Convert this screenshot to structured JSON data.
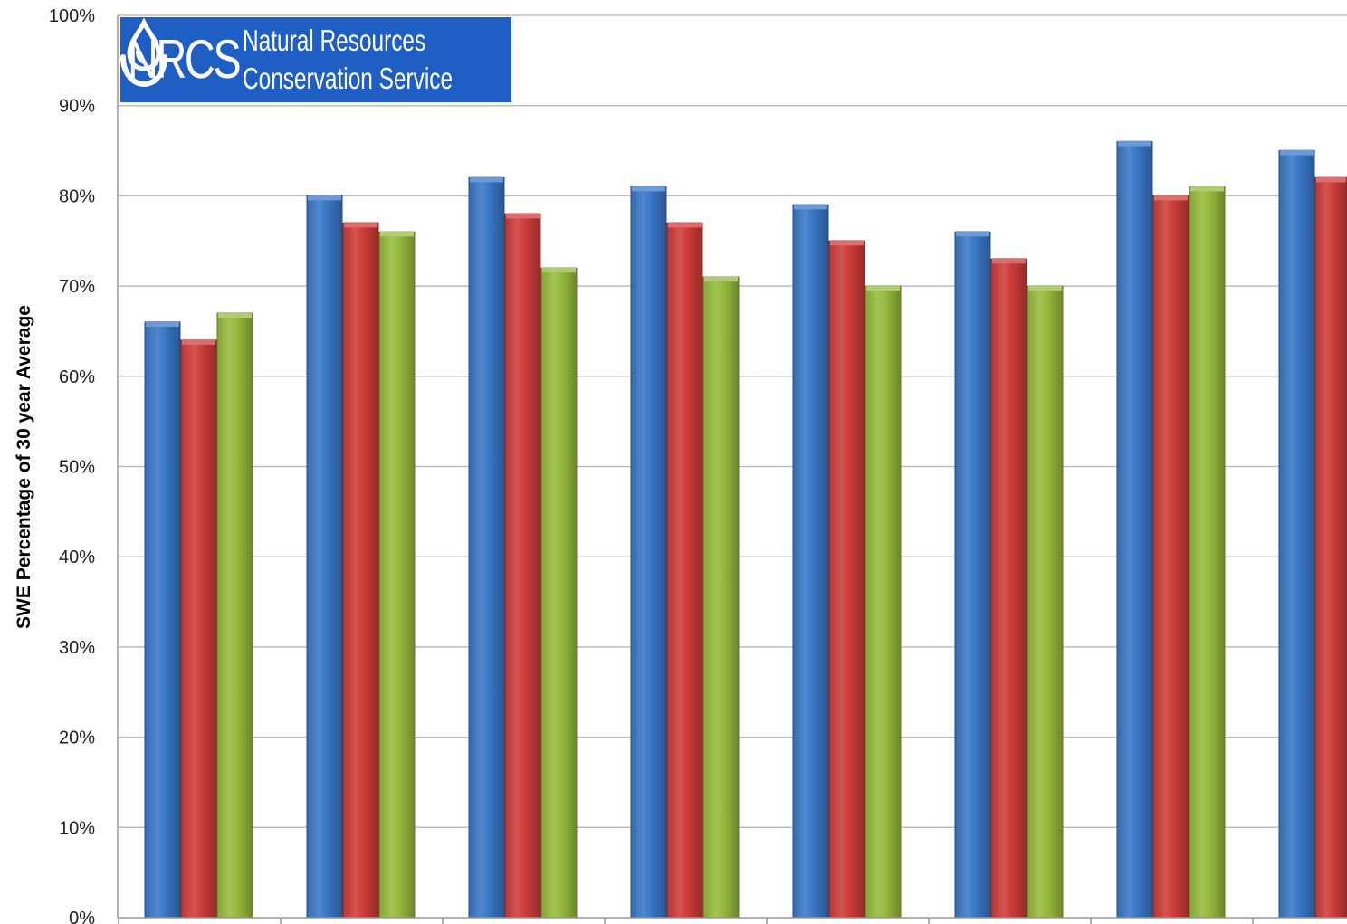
{
  "chart_data": {
    "type": "bar",
    "ylabel": "SWE Percentage of 30 year Average",
    "ylim": [
      0,
      100
    ],
    "y_tick_labels": [
      "0%",
      "10%",
      "20%",
      "30%",
      "40%",
      "50%",
      "60%",
      "70%",
      "80%",
      "90%",
      "100%"
    ],
    "grid": true,
    "series": [
      {
        "values": [
          66,
          80,
          82,
          81,
          79,
          76,
          86,
          85
        ],
        "color": "#3a78c8"
      },
      {
        "values": [
          64,
          77,
          78,
          77,
          75,
          73,
          80,
          82
        ],
        "color": "#cf3d3a"
      },
      {
        "values": [
          67,
          76,
          72,
          71,
          70,
          70,
          81,
          null
        ],
        "color": "#97bb3d"
      }
    ]
  },
  "logo": {
    "acronym": "NRCS",
    "line1": "Natural Resources",
    "line2": "Conservation Service",
    "background": "#1f5fc4",
    "icon": "water-drop-icon"
  }
}
